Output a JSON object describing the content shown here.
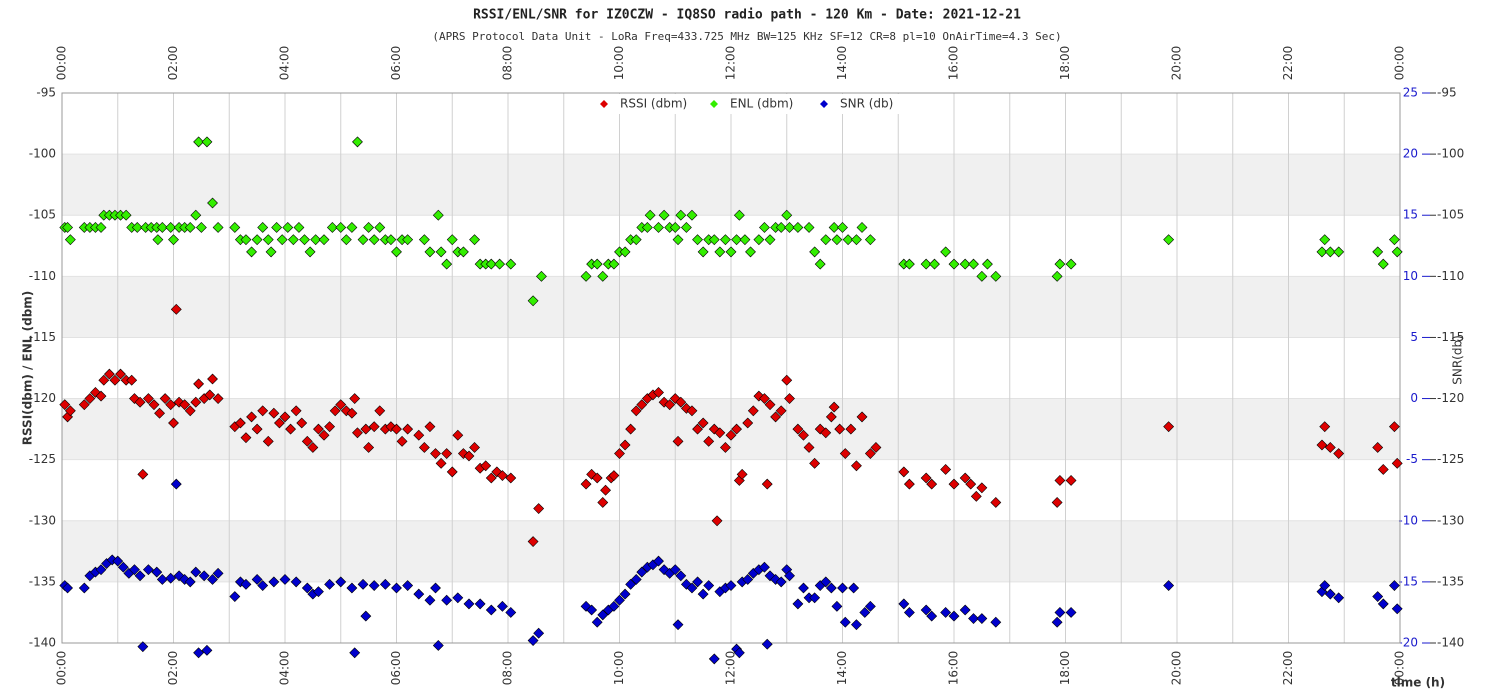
{
  "chart_data": {
    "type": "scatter",
    "title": "RSSI/ENL/SNR for IZ0CZW - IQ8SO radio path - 120 Km - Date: 2021-12-21",
    "subtitle": "(APRS Protocol Data Unit - LoRa Freq=433.725 MHz BW=125 KHz SF=12 CR=8 pl=10 OnAirTime=4.3 Sec)",
    "x_label": "time (h)",
    "y_label": "RSSI(dbm) / ENL (dbm)",
    "y2_label": "SNR(db)",
    "legend": "top",
    "grid": true,
    "xlim": [
      0,
      24
    ],
    "xticks": [
      {
        "value": 0,
        "label": "00:00"
      },
      {
        "value": 2,
        "label": "02:00"
      },
      {
        "value": 4,
        "label": "04:00"
      },
      {
        "value": 6,
        "label": "06:00"
      },
      {
        "value": 8,
        "label": "08:00"
      },
      {
        "value": 10,
        "label": "10:00"
      },
      {
        "value": 12,
        "label": "12:00"
      },
      {
        "value": 14,
        "label": "14:00"
      },
      {
        "value": 16,
        "label": "16:00"
      },
      {
        "value": 18,
        "label": "18:00"
      },
      {
        "value": 20,
        "label": "20:00"
      },
      {
        "value": 22,
        "label": "22:00"
      },
      {
        "value": 24,
        "label": "00:00"
      }
    ],
    "ylim": [
      -140,
      -95
    ],
    "yticks": [
      -140,
      -135,
      -130,
      -125,
      -120,
      -115,
      -110,
      -105,
      -100,
      -95
    ],
    "y2lim": [
      -20,
      25
    ],
    "y2ticks": [
      -20,
      -15,
      -10,
      -5,
      0,
      5,
      10,
      15,
      20,
      25
    ],
    "series": [
      {
        "name": "RSSI (dbm)",
        "color": "#dd0000",
        "x": [
          0.05,
          0.1,
          0.15,
          0.4,
          0.5,
          0.6,
          0.7,
          0.75,
          0.85,
          0.95,
          1.05,
          1.15,
          1.25,
          1.3,
          1.4,
          1.45,
          1.55,
          1.65,
          1.75,
          1.85,
          1.95,
          2.0,
          2.05,
          2.1,
          2.2,
          2.3,
          2.4,
          2.45,
          2.55,
          2.65,
          2.7,
          2.8,
          3.1,
          3.2,
          3.3,
          3.4,
          3.5,
          3.6,
          3.7,
          3.8,
          3.9,
          4.0,
          4.1,
          4.2,
          4.3,
          4.4,
          4.5,
          4.6,
          4.7,
          4.8,
          4.9,
          5.0,
          5.1,
          5.2,
          5.25,
          5.3,
          5.45,
          5.5,
          5.6,
          5.7,
          5.8,
          5.9,
          6.0,
          6.1,
          6.2,
          6.4,
          6.5,
          6.6,
          6.7,
          6.8,
          6.9,
          7.0,
          7.1,
          7.2,
          7.3,
          7.4,
          7.5,
          7.6,
          7.7,
          7.8,
          7.9,
          8.05,
          8.45,
          8.55,
          9.4,
          9.5,
          9.6,
          9.7,
          9.75,
          9.85,
          9.9,
          10.0,
          10.1,
          10.2,
          10.3,
          10.4,
          10.5,
          10.6,
          10.7,
          10.8,
          10.9,
          11.0,
          11.05,
          11.1,
          11.2,
          11.3,
          11.4,
          11.5,
          11.6,
          11.7,
          11.75,
          11.8,
          11.9,
          12.0,
          12.1,
          12.15,
          12.2,
          12.3,
          12.4,
          12.5,
          12.6,
          12.65,
          12.7,
          12.8,
          12.9,
          13.0,
          13.05,
          13.2,
          13.3,
          13.4,
          13.5,
          13.6,
          13.7,
          13.8,
          13.85,
          13.95,
          14.05,
          14.15,
          14.25,
          14.35,
          14.5,
          14.6,
          15.1,
          15.2,
          15.5,
          15.6,
          15.85,
          16.0,
          16.2,
          16.3,
          16.4,
          16.5,
          16.75,
          17.85,
          17.9,
          18.1,
          19.85,
          22.6,
          22.65,
          22.75,
          22.9,
          23.6,
          23.7,
          23.9,
          23.95
        ],
        "values": [
          -120.5,
          -121.5,
          -121,
          -120.5,
          -120,
          -119.5,
          -119.8,
          -118.5,
          -118,
          -118.5,
          -118,
          -118.5,
          -118.5,
          -120,
          -120.3,
          -126.2,
          -120,
          -120.5,
          -121.2,
          -120,
          -120.5,
          -122,
          -112.7,
          -120.3,
          -120.5,
          -121,
          -120.3,
          -118.8,
          -120,
          -119.7,
          -118.4,
          -120,
          -122.3,
          -122,
          -123.2,
          -121.5,
          -122.5,
          -121,
          -123.5,
          -121.2,
          -122,
          -121.5,
          -122.5,
          -121,
          -122,
          -123.5,
          -124,
          -122.5,
          -123,
          -122.3,
          -121,
          -120.5,
          -121,
          -121.2,
          -120,
          -122.8,
          -122.5,
          -124,
          -122.3,
          -121,
          -122.5,
          -122.3,
          -122.5,
          -123.5,
          -122.5,
          -123,
          -124,
          -122.3,
          -124.5,
          -125.3,
          -124.5,
          -126,
          -123,
          -124.5,
          -124.7,
          -124,
          -125.7,
          -125.5,
          -126.5,
          -126,
          -126.3,
          -126.5,
          -131.7,
          -129,
          -127,
          -126.2,
          -126.5,
          -128.5,
          -127.5,
          -126.5,
          -126.3,
          -124.5,
          -123.8,
          -122.5,
          -121,
          -120.5,
          -120,
          -119.7,
          -119.5,
          -120.3,
          -120.5,
          -120,
          -123.5,
          -120.3,
          -120.8,
          -121,
          -122.5,
          -122,
          -123.5,
          -122.5,
          -130,
          -122.8,
          -124,
          -123,
          -122.5,
          -126.7,
          -126.2,
          -122,
          -121,
          -119.8,
          -120,
          -127,
          -120.5,
          -121.5,
          -121,
          -118.5,
          -120,
          -122.5,
          -123,
          -124,
          -125.3,
          -122.5,
          -122.8,
          -121.5,
          -120.7,
          -122.5,
          -124.5,
          -122.5,
          -125.5,
          -121.5,
          -124.5,
          -124,
          -126,
          -127,
          -126.5,
          -127,
          -125.8,
          -127,
          -126.5,
          -127,
          -128,
          -127.3,
          -128.5,
          -128.5,
          -126.7,
          -126.7,
          -122.3,
          -123.8,
          -122.3,
          -124,
          -124.5,
          -124,
          -125.8,
          -122.3,
          -125.3
        ]
      },
      {
        "name": "ENL (dbm)",
        "color": "#33ee00",
        "x": [
          0.05,
          0.1,
          0.15,
          0.4,
          0.5,
          0.6,
          0.7,
          0.75,
          0.85,
          0.95,
          1.05,
          1.15,
          1.25,
          1.35,
          1.5,
          1.6,
          1.7,
          1.72,
          1.8,
          1.95,
          2.0,
          2.1,
          2.2,
          2.3,
          2.4,
          2.45,
          2.5,
          2.6,
          2.7,
          2.8,
          3.1,
          3.2,
          3.3,
          3.4,
          3.5,
          3.6,
          3.7,
          3.75,
          3.85,
          3.95,
          4.05,
          4.15,
          4.25,
          4.35,
          4.45,
          4.55,
          4.7,
          4.85,
          5.0,
          5.1,
          5.2,
          5.3,
          5.4,
          5.5,
          5.6,
          5.7,
          5.8,
          5.9,
          6.0,
          6.1,
          6.2,
          6.5,
          6.6,
          6.75,
          6.8,
          6.9,
          7.0,
          7.1,
          7.2,
          7.4,
          7.5,
          7.6,
          7.7,
          7.85,
          8.05,
          8.45,
          8.6,
          9.4,
          9.5,
          9.6,
          9.7,
          9.8,
          9.9,
          10.0,
          10.1,
          10.2,
          10.3,
          10.4,
          10.5,
          10.55,
          10.7,
          10.8,
          10.9,
          11.0,
          11.05,
          11.1,
          11.2,
          11.3,
          11.4,
          11.5,
          11.6,
          11.7,
          11.8,
          11.9,
          12.0,
          12.1,
          12.15,
          12.25,
          12.35,
          12.5,
          12.6,
          12.7,
          12.8,
          12.9,
          13.0,
          13.05,
          13.2,
          13.4,
          13.5,
          13.6,
          13.7,
          13.85,
          13.9,
          14.0,
          14.1,
          14.25,
          14.35,
          14.5,
          15.1,
          15.2,
          15.5,
          15.65,
          15.85,
          16.0,
          16.2,
          16.35,
          16.5,
          16.6,
          16.75,
          17.85,
          17.9,
          18.1,
          19.85,
          22.6,
          22.65,
          22.75,
          22.9,
          23.6,
          23.7,
          23.9,
          23.95
        ],
        "values": [
          -106,
          -106,
          -107,
          -106,
          -106,
          -106,
          -106,
          -105,
          -105,
          -105,
          -105,
          -105,
          -106,
          -106,
          -106,
          -106,
          -106,
          -107,
          -106,
          -106,
          -107,
          -106,
          -106,
          -106,
          -105,
          -99,
          -106,
          -99,
          -104,
          -106,
          -106,
          -107,
          -107,
          -108,
          -107,
          -106,
          -107,
          -108,
          -106,
          -107,
          -106,
          -107,
          -106,
          -107,
          -108,
          -107,
          -107,
          -106,
          -106,
          -107,
          -106,
          -99,
          -107,
          -106,
          -107,
          -106,
          -107,
          -107,
          -108,
          -107,
          -107,
          -107,
          -108,
          -105,
          -108,
          -109,
          -107,
          -108,
          -108,
          -107,
          -109,
          -109,
          -109,
          -109,
          -109,
          -112,
          -110,
          -110,
          -109,
          -109,
          -110,
          -109,
          -109,
          -108,
          -108,
          -107,
          -107,
          -106,
          -106,
          -105,
          -106,
          -105,
          -106,
          -106,
          -107,
          -105,
          -106,
          -105,
          -107,
          -108,
          -107,
          -107,
          -108,
          -107,
          -108,
          -107,
          -105,
          -107,
          -108,
          -107,
          -106,
          -107,
          -106,
          -106,
          -105,
          -106,
          -106,
          -106,
          -108,
          -109,
          -107,
          -106,
          -107,
          -106,
          -107,
          -107,
          -106,
          -107,
          -109,
          -109,
          -109,
          -109,
          -108,
          -109,
          -109,
          -109,
          -110,
          -109,
          -110,
          -110,
          -109,
          -109,
          -107,
          -108,
          -107,
          -108,
          -108,
          -108,
          -109,
          -107,
          -108
        ]
      },
      {
        "name": "SNR (db)",
        "color": "#0000cc",
        "axis": "y2",
        "x": [
          0.05,
          0.1,
          0.4,
          0.5,
          0.6,
          0.7,
          0.8,
          0.9,
          1.0,
          1.1,
          1.2,
          1.3,
          1.4,
          1.45,
          1.55,
          1.7,
          1.8,
          1.95,
          2.05,
          2.1,
          2.2,
          2.3,
          2.4,
          2.45,
          2.55,
          2.6,
          2.7,
          2.8,
          3.1,
          3.2,
          3.3,
          3.5,
          3.6,
          3.8,
          4.0,
          4.2,
          4.4,
          4.5,
          4.6,
          4.8,
          5.0,
          5.2,
          5.25,
          5.4,
          5.45,
          5.6,
          5.8,
          6.0,
          6.2,
          6.4,
          6.6,
          6.7,
          6.75,
          6.9,
          7.1,
          7.3,
          7.5,
          7.7,
          7.9,
          8.05,
          8.45,
          8.55,
          9.4,
          9.5,
          9.6,
          9.7,
          9.8,
          9.9,
          10.0,
          10.1,
          10.2,
          10.3,
          10.4,
          10.5,
          10.6,
          10.7,
          10.8,
          10.9,
          11.0,
          11.05,
          11.1,
          11.2,
          11.3,
          11.4,
          11.5,
          11.6,
          11.7,
          11.8,
          11.9,
          12.0,
          12.1,
          12.15,
          12.2,
          12.3,
          12.4,
          12.5,
          12.6,
          12.65,
          12.7,
          12.8,
          12.9,
          13.0,
          13.05,
          13.2,
          13.3,
          13.4,
          13.5,
          13.6,
          13.7,
          13.8,
          13.9,
          14.0,
          14.05,
          14.2,
          14.25,
          14.4,
          14.5,
          15.1,
          15.2,
          15.5,
          15.6,
          15.85,
          16.0,
          16.2,
          16.35,
          16.5,
          16.75,
          17.85,
          17.9,
          18.1,
          19.85,
          22.6,
          22.65,
          22.75,
          22.9,
          23.6,
          23.7,
          23.9,
          23.95
        ],
        "values": [
          -15.3,
          -15.5,
          -15.5,
          -14.5,
          -14.2,
          -14,
          -13.5,
          -13.2,
          -13.3,
          -13.8,
          -14.3,
          -14,
          -14.5,
          -20.3,
          -14,
          -14.2,
          -14.8,
          -14.7,
          -7,
          -14.5,
          -14.8,
          -15,
          -14.2,
          -20.8,
          -14.5,
          -20.6,
          -14.8,
          -14.3,
          -16.2,
          -15,
          -15.2,
          -14.8,
          -15.3,
          -15,
          -14.8,
          -15,
          -15.5,
          -16,
          -15.8,
          -15.2,
          -15,
          -15.5,
          -20.8,
          -15.2,
          -17.8,
          -15.3,
          -15.2,
          -15.5,
          -15.3,
          -16,
          -16.5,
          -15.5,
          -20.2,
          -16.5,
          -16.3,
          -16.8,
          -16.8,
          -17.3,
          -17,
          -17.5,
          -19.8,
          -19.2,
          -17,
          -17.3,
          -18.3,
          -17.7,
          -17.3,
          -17,
          -16.5,
          -16,
          -15.2,
          -14.8,
          -14.2,
          -13.8,
          -13.6,
          -13.3,
          -14,
          -14.3,
          -14,
          -18.5,
          -14.5,
          -15.2,
          -15.5,
          -15,
          -16,
          -15.3,
          -21.3,
          -15.8,
          -15.5,
          -15.3,
          -20.5,
          -20.8,
          -15,
          -14.8,
          -14.3,
          -14,
          -13.8,
          -20.1,
          -14.5,
          -14.8,
          -15,
          -14,
          -14.5,
          -16.8,
          -15.5,
          -16.3,
          -16.3,
          -15.3,
          -15,
          -15.5,
          -17,
          -15.5,
          -18.3,
          -15.5,
          -18.5,
          -17.5,
          -17,
          -16.8,
          -17.5,
          -17.3,
          -17.8,
          -17.5,
          -17.8,
          -17.3,
          -18,
          -18,
          -18.3,
          -18.3,
          -17.5,
          -17.5,
          -15.3,
          -15.8,
          -15.3,
          -16,
          -16.3,
          -16.2,
          -16.8,
          -15.3,
          -17.2
        ]
      }
    ]
  }
}
